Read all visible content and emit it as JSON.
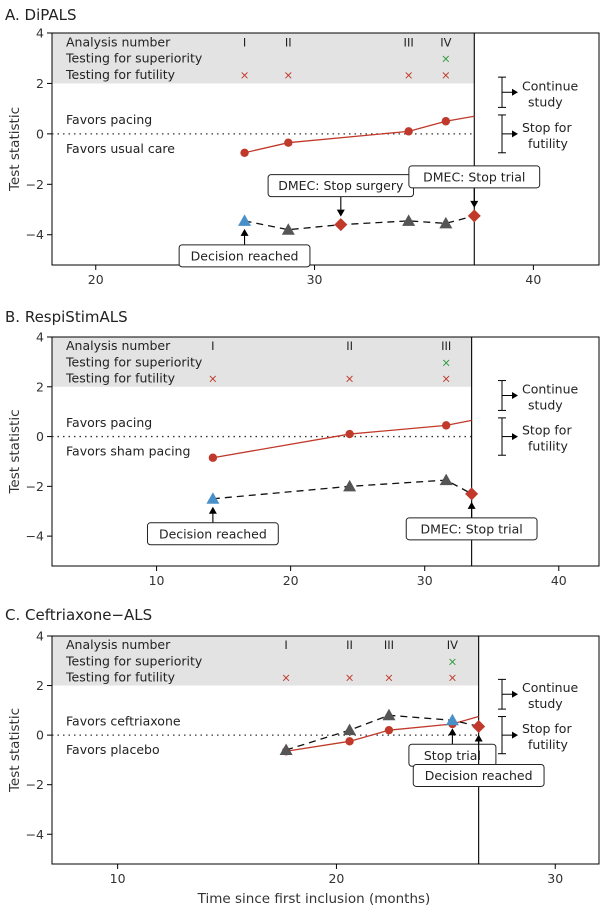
{
  "colors": {
    "pacing_line": "#c0392b",
    "red_marker": "#c0392b",
    "dark_marker": "#555555",
    "blue_marker": "#4a90c8",
    "green_marker": "#2e9a3e",
    "shade": "#e3e3e3"
  },
  "xlabel": "Time since first inclusion (months)",
  "chart_data": [
    {
      "type": "line",
      "panel_label": "A. DiPALS",
      "ylabel": "Test statistic",
      "xlim": [
        18,
        43
      ],
      "ylim": [
        -5.2,
        4
      ],
      "x_ticks": [
        20,
        30,
        40
      ],
      "y_ticks": [
        4,
        2,
        0,
        -2,
        -4
      ],
      "info_rows": {
        "analysis_number": "Analysis number",
        "superiority": "Testing for superiority",
        "futility": "Testing for futility"
      },
      "analyses": [
        {
          "roman": "I",
          "x": 26.8,
          "futility": true,
          "superiority": false
        },
        {
          "roman": "II",
          "x": 28.8,
          "futility": true,
          "superiority": false
        },
        {
          "roman": "III",
          "x": 34.3,
          "futility": true,
          "superiority": false
        },
        {
          "roman": "IV",
          "x": 36.0,
          "futility": true,
          "superiority": true
        }
      ],
      "favors_top": "Favors pacing",
      "favors_bottom": "Favors usual care",
      "stop_time": 37.3,
      "red_series": {
        "x": [
          26.8,
          28.8,
          34.3,
          36.0
        ],
        "y": [
          -0.75,
          -0.35,
          0.1,
          0.5
        ],
        "line_end": [
          37.3,
          0.7
        ]
      },
      "dashed_series": {
        "x": [
          26.8,
          28.8,
          31.2,
          34.3,
          36.0,
          37.3
        ],
        "y": [
          -3.45,
          -3.8,
          -3.6,
          -3.45,
          -3.55,
          -3.25
        ]
      },
      "dashed_markers": [
        {
          "x": 26.8,
          "y": -3.45,
          "kind": "blue-triangle"
        },
        {
          "x": 28.8,
          "y": -3.8,
          "kind": "dark-triangle"
        },
        {
          "x": 31.2,
          "y": -3.6,
          "kind": "red-diamond"
        },
        {
          "x": 34.3,
          "y": -3.45,
          "kind": "dark-triangle"
        },
        {
          "x": 36.0,
          "y": -3.55,
          "kind": "dark-triangle"
        },
        {
          "x": 37.3,
          "y": -3.25,
          "kind": "red-diamond"
        }
      ],
      "callouts": [
        {
          "text": "Decision reached",
          "x": 26.8,
          "dir": "up"
        },
        {
          "text": "DMEC: Stop surgery",
          "x": 31.2,
          "dir": "down"
        },
        {
          "text": "DMEC: Stop trial",
          "x": 37.3,
          "dir": "down"
        }
      ],
      "side_labels": [
        [
          "Continue",
          "study"
        ],
        [
          "Stop for",
          "futility"
        ]
      ]
    },
    {
      "type": "line",
      "panel_label": "B. RespiStimALS",
      "ylabel": "Test statistic",
      "xlim": [
        2.2,
        43
      ],
      "ylim": [
        -5.2,
        4
      ],
      "x_ticks": [
        10,
        20,
        30,
        40
      ],
      "y_ticks": [
        4,
        2,
        0,
        -2,
        -4
      ],
      "info_rows": {
        "analysis_number": "Analysis number",
        "superiority": "Testing for superiority",
        "futility": "Testing for futility"
      },
      "analyses": [
        {
          "roman": "I",
          "x": 14.2,
          "futility": true,
          "superiority": false
        },
        {
          "roman": "II",
          "x": 24.4,
          "futility": true,
          "superiority": false
        },
        {
          "roman": "III",
          "x": 31.6,
          "futility": true,
          "superiority": true
        }
      ],
      "favors_top": "Favors pacing",
      "favors_bottom": "Favors sham pacing",
      "stop_time": 33.5,
      "red_series": {
        "x": [
          14.2,
          24.4,
          31.6
        ],
        "y": [
          -0.85,
          0.1,
          0.45
        ],
        "line_end": [
          33.5,
          0.65
        ]
      },
      "dashed_series": {
        "x": [
          14.2,
          24.4,
          31.6,
          33.5
        ],
        "y": [
          -2.5,
          -2.0,
          -1.75,
          -2.3
        ]
      },
      "dashed_markers": [
        {
          "x": 14.2,
          "y": -2.5,
          "kind": "blue-triangle"
        },
        {
          "x": 24.4,
          "y": -2.0,
          "kind": "dark-triangle"
        },
        {
          "x": 31.6,
          "y": -1.75,
          "kind": "dark-triangle"
        },
        {
          "x": 33.5,
          "y": -2.3,
          "kind": "red-diamond"
        }
      ],
      "callouts": [
        {
          "text": "Decision reached",
          "x": 14.2,
          "dir": "up"
        },
        {
          "text": "DMEC: Stop trial",
          "x": 33.5,
          "dir": "up"
        }
      ],
      "side_labels": [
        [
          "Continue",
          "study"
        ],
        [
          "Stop for",
          "futility"
        ]
      ]
    },
    {
      "type": "line",
      "panel_label": "C. Ceftriaxone−ALS",
      "ylabel": "Test statistic",
      "xlim": [
        7,
        32
      ],
      "ylim": [
        -5.2,
        4
      ],
      "x_ticks": [
        10,
        20,
        30
      ],
      "y_ticks": [
        4,
        2,
        0,
        -2,
        -4
      ],
      "info_rows": {
        "analysis_number": "Analysis number",
        "superiority": "Testing for superiority",
        "futility": "Testing for futility"
      },
      "analyses": [
        {
          "roman": "I",
          "x": 17.7,
          "futility": true,
          "superiority": false
        },
        {
          "roman": "II",
          "x": 20.6,
          "futility": true,
          "superiority": false
        },
        {
          "roman": "III",
          "x": 22.4,
          "futility": true,
          "superiority": false
        },
        {
          "roman": "IV",
          "x": 25.3,
          "futility": true,
          "superiority": true
        }
      ],
      "favors_top": "Favors ceftriaxone",
      "favors_bottom": "Favors placebo",
      "stop_time": 26.5,
      "red_series": {
        "x": [
          17.7,
          20.6,
          22.4,
          25.3
        ],
        "y": [
          -0.65,
          -0.25,
          0.2,
          0.45
        ],
        "line_end": [
          26.5,
          0.75
        ]
      },
      "dashed_series": {
        "x": [
          17.7,
          20.6,
          22.4,
          25.3,
          26.5
        ],
        "y": [
          -0.6,
          0.2,
          0.8,
          0.6,
          0.35
        ]
      },
      "dashed_markers": [
        {
          "x": 17.7,
          "y": -0.6,
          "kind": "dark-triangle"
        },
        {
          "x": 20.6,
          "y": 0.2,
          "kind": "dark-triangle"
        },
        {
          "x": 22.4,
          "y": 0.8,
          "kind": "dark-triangle"
        },
        {
          "x": 25.3,
          "y": 0.6,
          "kind": "blue-triangle"
        },
        {
          "x": 26.5,
          "y": 0.35,
          "kind": "red-diamond"
        }
      ],
      "callouts": [
        {
          "text": "Stop trial",
          "x": 25.3,
          "dir": "up"
        },
        {
          "text": "Decision reached",
          "x": 26.5,
          "dir": "up"
        }
      ],
      "side_labels": [
        [
          "Continue",
          "study"
        ],
        [
          "Stop for",
          "futility"
        ]
      ]
    }
  ]
}
